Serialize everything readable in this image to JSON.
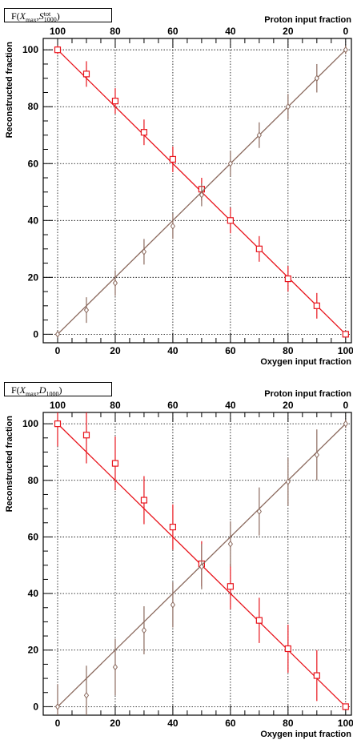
{
  "chart_data": [
    {
      "type": "scatter",
      "panel_label_parts": {
        "prefix": "F(",
        "var1": "X",
        "var1_sub": "max",
        "sep": ",",
        "var2": "S",
        "var2_sup": "tot",
        "var2_sub": "1000",
        "suffix": ")"
      },
      "xlabel_bottom": "Oxygen input fraction",
      "xlabel_top": "Proton input fraction",
      "ylabel": "Reconstructed fraction",
      "xlim": [
        -5,
        102
      ],
      "ylim": [
        -3,
        104
      ],
      "x_ticks": [
        0,
        20,
        40,
        60,
        80,
        100
      ],
      "x_tick_labels": [
        "0",
        "20",
        "40",
        "60",
        "80",
        "100"
      ],
      "top_ticks": [
        100,
        80,
        60,
        40,
        20,
        0
      ],
      "top_tick_labels": [
        "100",
        "80",
        "60",
        "40",
        "20",
        "0"
      ],
      "y_ticks": [
        0,
        20,
        40,
        60,
        80,
        100
      ],
      "y_tick_labels": [
        "0",
        "20",
        "40",
        "60",
        "80",
        "100"
      ],
      "grid": true,
      "series": [
        {
          "marker": "square",
          "color": "#e8141c",
          "x": [
            0,
            10,
            20,
            30,
            40,
            50,
            60,
            70,
            80,
            90,
            100
          ],
          "y": [
            100,
            91.5,
            82,
            71,
            61.5,
            51,
            40,
            30,
            19.5,
            10,
            0
          ],
          "err": [
            1.5,
            4.5,
            4.5,
            4.5,
            4.5,
            4,
            4.5,
            4.5,
            4.5,
            4.5,
            1
          ],
          "fit": [
            [
              0,
              100
            ],
            [
              100,
              0
            ]
          ]
        },
        {
          "marker": "diamond",
          "color": "#8b6a5e",
          "x": [
            0,
            10,
            20,
            30,
            40,
            50,
            60,
            70,
            80,
            90,
            100
          ],
          "y": [
            0,
            8.5,
            18,
            29,
            38,
            49,
            60,
            70,
            80,
            90,
            100
          ],
          "err": [
            1,
            4.5,
            4.5,
            4.5,
            4.5,
            4,
            4.5,
            4.5,
            4.5,
            5,
            1.5
          ],
          "fit": [
            [
              0,
              0
            ],
            [
              100,
              100
            ]
          ]
        }
      ]
    },
    {
      "type": "scatter",
      "panel_label_parts": {
        "prefix": "F(",
        "var1": "X",
        "var1_sub": "max",
        "sep": ",",
        "var2": "D",
        "var2_sup": "",
        "var2_sub": "1000",
        "suffix": ")"
      },
      "xlabel_bottom": "Oxygen input fraction",
      "xlabel_top": "Proton input fraction",
      "ylabel": "Reconstructed fraction",
      "xlim": [
        -5,
        102
      ],
      "ylim": [
        -3,
        104
      ],
      "x_ticks": [
        0,
        20,
        40,
        60,
        80,
        100
      ],
      "x_tick_labels": [
        "0",
        "20",
        "40",
        "60",
        "80",
        "100"
      ],
      "top_ticks": [
        100,
        80,
        60,
        40,
        20,
        0
      ],
      "top_tick_labels": [
        "100",
        "80",
        "60",
        "40",
        "20",
        "0"
      ],
      "y_ticks": [
        0,
        20,
        40,
        60,
        80,
        100
      ],
      "y_tick_labels": [
        "0",
        "20",
        "40",
        "60",
        "80",
        "100"
      ],
      "grid": true,
      "series": [
        {
          "marker": "square",
          "color": "#e8141c",
          "x": [
            0,
            10,
            20,
            30,
            40,
            50,
            60,
            70,
            80,
            90,
            100
          ],
          "y": [
            100,
            96,
            86,
            73,
            63.5,
            50.5,
            42.5,
            30.5,
            20.5,
            11,
            0
          ],
          "err": [
            8,
            10,
            9.5,
            8.5,
            8,
            8,
            8,
            8,
            8.5,
            9,
            1
          ],
          "fit": [
            [
              0,
              100
            ],
            [
              100,
              0
            ]
          ]
        },
        {
          "marker": "diamond",
          "color": "#8b6a5e",
          "x": [
            0,
            10,
            20,
            30,
            40,
            50,
            60,
            70,
            80,
            90,
            100
          ],
          "y": [
            0,
            4,
            14,
            27,
            36,
            49.5,
            57.5,
            69,
            79.5,
            89,
            100
          ],
          "err": [
            8,
            10.5,
            10,
            8.5,
            8,
            8,
            8,
            8.5,
            8.5,
            9,
            1.5
          ],
          "fit": [
            [
              0,
              0
            ],
            [
              100,
              100
            ]
          ]
        }
      ]
    }
  ]
}
